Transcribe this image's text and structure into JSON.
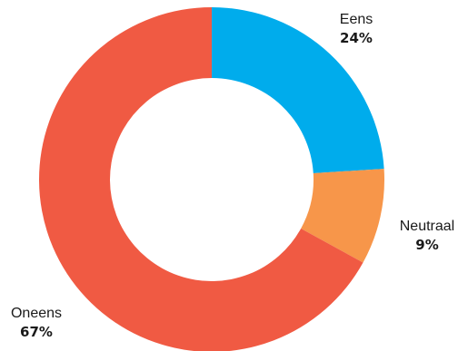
{
  "chart_data": {
    "type": "pie",
    "variant": "donut",
    "title": "",
    "legend": "none",
    "slices": [
      {
        "name": "Eens",
        "value": 24,
        "label": "24%",
        "color": "#00acec"
      },
      {
        "name": "Neutraal",
        "value": 9,
        "label": "9%",
        "color": "#f7964a"
      },
      {
        "name": "Oneens",
        "value": 67,
        "label": "67%",
        "color": "#f05a43"
      }
    ]
  }
}
